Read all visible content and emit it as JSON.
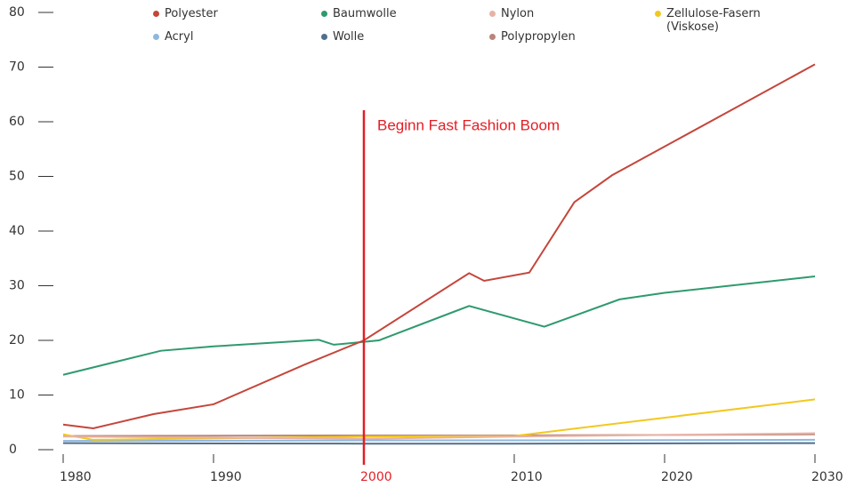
{
  "chart_data": {
    "type": "line",
    "annotation": {
      "text": "Beginn Fast Fashion Boom",
      "x": 2000,
      "color": "#e31e24"
    },
    "xlim": [
      1980,
      2030
    ],
    "xticks": [
      1980,
      1990,
      2000,
      2010,
      2020,
      2030
    ],
    "ylim": [
      0,
      80
    ],
    "yticks": [
      0,
      10,
      20,
      30,
      40,
      50,
      60,
      70,
      80
    ],
    "grid": false,
    "legend": "top",
    "series": [
      {
        "name": "Polyester",
        "color": "#c4463b",
        "x": [
          1980,
          1982,
          1986,
          1990,
          1996,
          2000,
          2007,
          2008,
          2011,
          2014,
          2016.5,
          2030
        ],
        "values": [
          4.6,
          3.9,
          6.5,
          8.3,
          15.5,
          20,
          32.3,
          30.9,
          32.4,
          45.3,
          50.2,
          70.5
        ]
      },
      {
        "name": "Baumwolle",
        "color": "#2e9a6e",
        "x": [
          1980,
          1986.5,
          1990,
          1997,
          1998,
          2001,
          2007,
          2012,
          2017,
          2020,
          2030
        ],
        "values": [
          13.7,
          18.1,
          18.9,
          20.1,
          19.2,
          20,
          26.3,
          22.5,
          27.5,
          28.7,
          31.7
        ]
      },
      {
        "name": "Nylon",
        "color": "#e8b2a4",
        "x": [
          1980,
          2000,
          2010,
          2030
        ],
        "values": [
          2.4,
          2.0,
          2.4,
          3.0
        ]
      },
      {
        "name": "Zellulose-Fasern (Viskose)",
        "color": "#f2c81e",
        "x": [
          1980,
          1982,
          2000,
          2010,
          2030
        ],
        "values": [
          2.8,
          1.8,
          2.4,
          2.5,
          9.2
        ]
      },
      {
        "name": "Acryl",
        "color": "#8fb8de",
        "x": [
          1980,
          2000,
          2010,
          2030
        ],
        "values": [
          1.6,
          1.7,
          1.7,
          1.8
        ]
      },
      {
        "name": "Wolle",
        "color": "#4f6f8f",
        "x": [
          1980,
          2000,
          2010,
          2030
        ],
        "values": [
          1.2,
          1.1,
          1.1,
          1.2
        ]
      },
      {
        "name": "Polypropylen",
        "color": "#b9857a",
        "x": [
          1980,
          2000,
          2010,
          2030
        ],
        "values": [
          2.5,
          2.6,
          2.6,
          2.8
        ]
      }
    ]
  }
}
